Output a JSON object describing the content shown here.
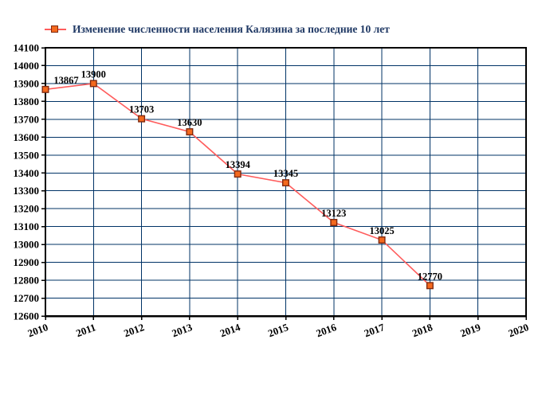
{
  "chart_data": {
    "type": "line",
    "legend": "Изменение численности населения Калязина за последние 10 лет",
    "x": [
      2010,
      2011,
      2012,
      2013,
      2014,
      2015,
      2016,
      2017,
      2018
    ],
    "values": [
      13867,
      13900,
      13703,
      13630,
      13394,
      13345,
      13123,
      13025,
      12770
    ],
    "x_ticks": [
      2010,
      2011,
      2012,
      2013,
      2014,
      2015,
      2016,
      2017,
      2018,
      2019,
      2020
    ],
    "y_ticks": [
      12600,
      12700,
      12800,
      12900,
      13000,
      13100,
      13200,
      13300,
      13400,
      13500,
      13600,
      13700,
      13800,
      13900,
      14000,
      14100
    ],
    "xlim": [
      2010,
      2020
    ],
    "ylim": [
      12600,
      14100
    ],
    "grid": true,
    "legend_position": "top-left",
    "xlabel": "",
    "ylabel": "",
    "colors": {
      "grid": "#003366",
      "axis": "#000000",
      "line": "#FF5C5C",
      "marker_fill": "#F4691E",
      "marker_border": "#7F2A10",
      "tick_text": "#000000",
      "legend_text": "#1F3864",
      "background": "#FFFFFF"
    }
  }
}
